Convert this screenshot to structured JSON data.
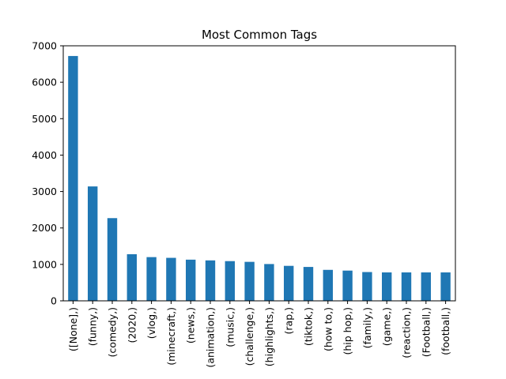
{
  "chart_data": {
    "type": "bar",
    "title": "Most Common Tags",
    "xlabel": "",
    "ylabel": "",
    "categories": [
      "([None],)",
      "(funny,)",
      "(comedy,)",
      "(2020,)",
      "(vlog,)",
      "(minecraft,)",
      "(news,)",
      "(animation,)",
      "(music,)",
      "(challenge,)",
      "(highlights,)",
      "(rap,)",
      "(tiktok,)",
      "(how to,)",
      "(hip hop,)",
      "(family,)",
      "(game,)",
      "(reaction,)",
      "(Football,)",
      "(football,)"
    ],
    "values": [
      6720,
      3140,
      2270,
      1280,
      1200,
      1180,
      1130,
      1110,
      1090,
      1070,
      1010,
      960,
      930,
      850,
      830,
      790,
      780,
      780,
      780,
      780
    ],
    "ylim": [
      0,
      7000
    ],
    "yticks": [
      0,
      1000,
      2000,
      3000,
      4000,
      5000,
      6000,
      7000
    ],
    "bar_color": "#1f77b4",
    "grid": false,
    "legend": "none"
  }
}
